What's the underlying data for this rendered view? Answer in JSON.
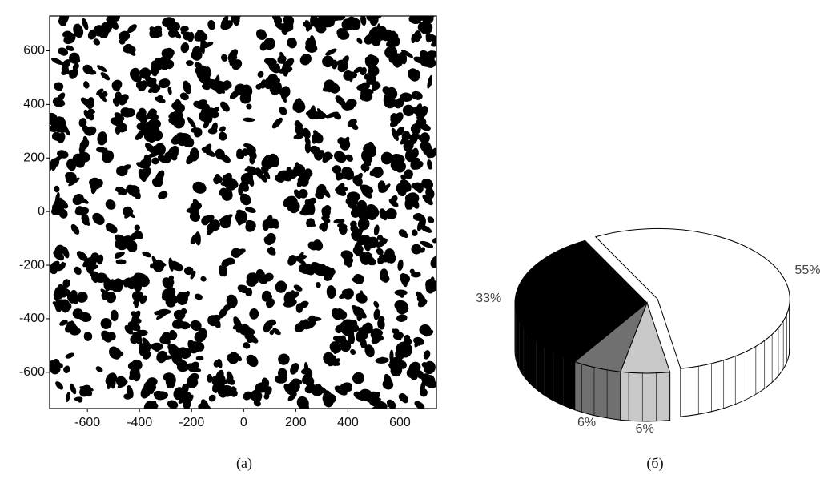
{
  "chart_data": [
    {
      "type": "image",
      "caption": "(a)",
      "xlim": [
        -745,
        740
      ],
      "ylim": [
        -735,
        730
      ],
      "xticks": [
        -600,
        -400,
        -200,
        0,
        200,
        400,
        600
      ],
      "yticks": [
        -600,
        -400,
        -200,
        0,
        200,
        400,
        600
      ]
    },
    {
      "type": "pie3d",
      "caption": "(б)",
      "values": [
        55,
        6,
        6,
        33
      ],
      "value_labels": [
        "55%",
        "6%",
        "6%",
        "33%"
      ],
      "colors": [
        "#ffffff",
        "#c8c8c8",
        "#707070",
        "#000000"
      ],
      "exploded": [
        true,
        false,
        false,
        false
      ]
    }
  ]
}
